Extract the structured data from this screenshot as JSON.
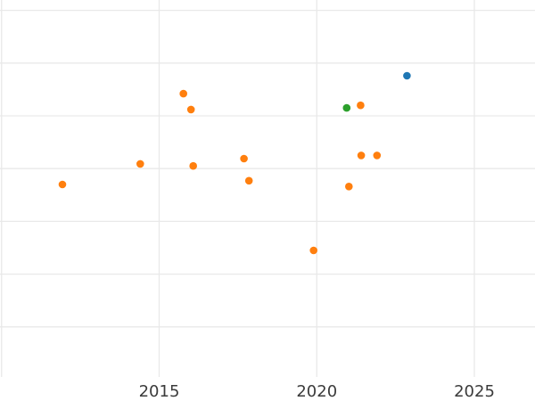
{
  "colors": {
    "background": "#ffffff",
    "gridline": "#e9e9e9",
    "tick_label": "#3b3b3b",
    "series_orange": "#ff7f0e",
    "series_green": "#2ca02c",
    "series_blue": "#1f77b4"
  },
  "chart_data": {
    "type": "scatter",
    "title": "",
    "xlabel": "",
    "ylabel": "",
    "grid": true,
    "legend": false,
    "x_axis": {
      "tick_labels": [
        "2015",
        "2020",
        "2025"
      ],
      "tick_values": [
        2015,
        2020,
        2025
      ],
      "gridline_values": [
        2010,
        2015,
        2020,
        2025
      ],
      "range": [
        2009.95,
        2026.92
      ]
    },
    "y_axis": {
      "tick_labels": [],
      "gridline_values": [
        1,
        2,
        3,
        4,
        5,
        6,
        7
      ],
      "range": [
        0.04,
        7.2
      ]
    },
    "series": [
      {
        "name": "orange",
        "color": "#ff7f0e",
        "points": [
          {
            "x": 2011.93,
            "y": 3.7
          },
          {
            "x": 2014.4,
            "y": 4.09
          },
          {
            "x": 2015.77,
            "y": 5.42
          },
          {
            "x": 2016.01,
            "y": 5.12
          },
          {
            "x": 2016.08,
            "y": 4.05
          },
          {
            "x": 2017.69,
            "y": 4.19
          },
          {
            "x": 2017.85,
            "y": 3.77
          },
          {
            "x": 2019.9,
            "y": 2.45
          },
          {
            "x": 2021.02,
            "y": 3.66
          },
          {
            "x": 2021.39,
            "y": 5.2
          },
          {
            "x": 2021.41,
            "y": 4.25
          },
          {
            "x": 2021.91,
            "y": 4.25
          }
        ]
      },
      {
        "name": "green",
        "color": "#2ca02c",
        "points": [
          {
            "x": 2020.95,
            "y": 5.15
          }
        ]
      },
      {
        "name": "blue",
        "color": "#1f77b4",
        "points": [
          {
            "x": 2022.86,
            "y": 5.76
          }
        ]
      }
    ]
  }
}
